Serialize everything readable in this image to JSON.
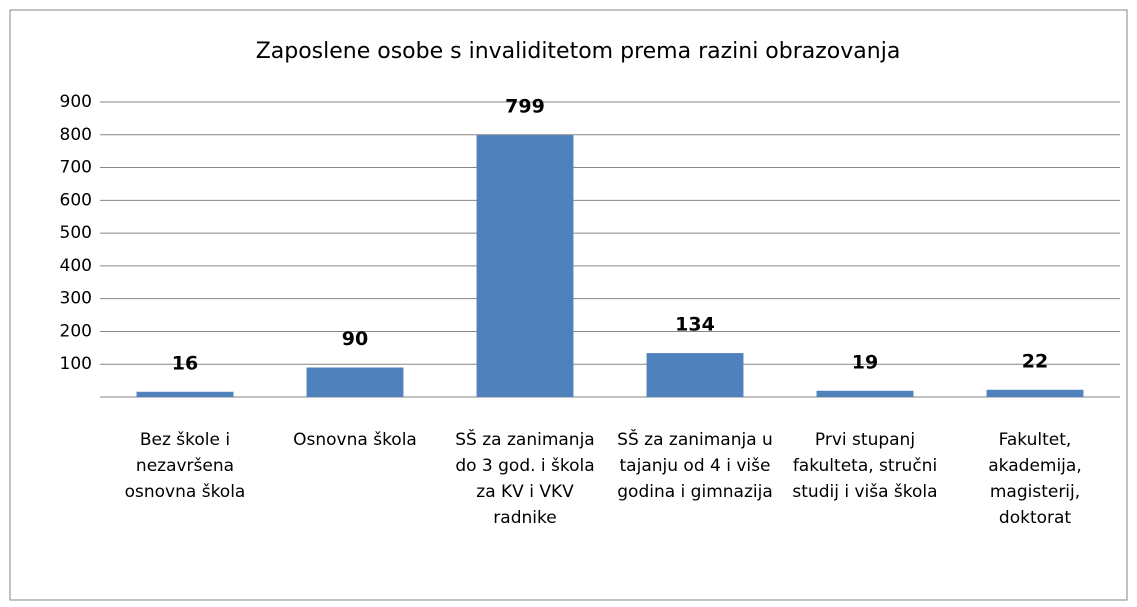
{
  "chart_data": {
    "type": "bar",
    "title": "Zaposlene osobe s invaliditetom prema razini obrazovanja",
    "categories": [
      "Bez škole i nezavršena osnovna škola",
      "Osnovna škola",
      "SŠ za zanimanja do 3 god. i škola za KV i VKV radnike",
      "SŠ za zanimanja u tajanju od 4 i više godina i gimnazija",
      "Prvi stupanj fakulteta, stručni studij i viša škola",
      "Fakultet, akademija, magisterij, doktorat"
    ],
    "values": [
      16,
      90,
      799,
      134,
      19,
      22
    ],
    "color": "#4f81bd",
    "ylim": [
      0,
      900
    ],
    "yticks": [
      100,
      200,
      300,
      400,
      500,
      600,
      700,
      800,
      900
    ],
    "grid": true
  }
}
